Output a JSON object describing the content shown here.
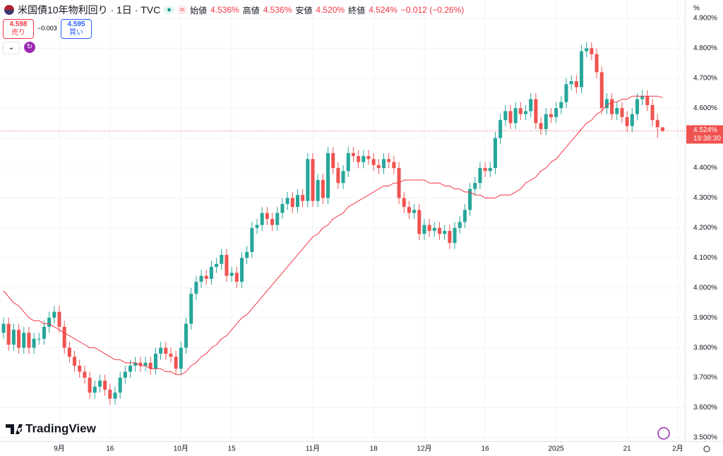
{
  "header": {
    "symbol": "米国債10年物利回り · 1日 · TVC",
    "open_label": "始値",
    "open": "4.536%",
    "high_label": "高値",
    "high": "4.536%",
    "low_label": "安値",
    "low": "4.520%",
    "close_label": "終値",
    "close": "4.524%",
    "change": "−0.012 (−0.26%)",
    "sell_price": "4.598",
    "sell_label": "売り",
    "spread": "−0.003",
    "buy_price": "4.595",
    "buy_label": "買い",
    "logo": "TradingView",
    "axis_unit": "%"
  },
  "chart_data": {
    "type": "candlestick",
    "up_color": "#26a69a",
    "down_color": "#ef5350",
    "grid": true,
    "open": [
      3.85,
      3.88,
      3.81,
      3.86,
      3.8,
      3.85,
      3.8,
      3.83,
      3.83,
      3.87,
      3.9,
      3.92,
      3.87,
      3.8,
      3.77,
      3.74,
      3.72,
      3.7,
      3.65,
      3.67,
      3.69,
      3.66,
      3.63,
      3.65,
      3.7,
      3.72,
      3.74,
      3.75,
      3.74,
      3.75,
      3.73,
      3.78,
      3.8,
      3.78,
      3.77,
      3.73,
      3.8,
      3.88,
      3.98,
      4.02,
      4.04,
      4.03,
      4.07,
      4.08,
      4.11,
      4.04,
      4.05,
      4.02,
      4.1,
      4.12,
      4.2,
      4.21,
      4.25,
      4.23,
      4.21,
      4.25,
      4.28,
      4.3,
      4.27,
      4.31,
      4.29,
      4.43,
      4.29,
      4.36,
      4.3,
      4.45,
      4.4,
      4.35,
      4.39,
      4.45,
      4.44,
      4.42,
      4.44,
      4.43,
      4.41,
      4.4,
      4.43,
      4.42,
      4.4,
      4.3,
      4.27,
      4.25,
      4.26,
      4.18,
      4.21,
      4.19,
      4.2,
      4.18,
      4.19,
      4.15,
      4.2,
      4.22,
      4.26,
      4.33,
      4.35,
      4.4,
      4.39,
      4.4,
      4.5,
      4.56,
      4.59,
      4.55,
      4.6,
      4.58,
      4.59,
      4.63,
      4.55,
      4.53,
      4.58,
      4.57,
      4.6,
      4.62,
      4.68,
      4.69,
      4.67,
      4.79,
      4.8,
      4.78,
      4.72,
      4.6,
      4.63,
      4.58,
      4.6,
      4.57,
      4.54,
      4.58,
      4.63,
      4.64,
      4.61,
      4.56,
      4.536
    ],
    "high": [
      3.9,
      3.9,
      3.88,
      3.88,
      3.87,
      3.87,
      3.85,
      3.85,
      3.89,
      3.92,
      3.94,
      3.94,
      3.89,
      3.82,
      3.79,
      3.76,
      3.74,
      3.72,
      3.69,
      3.71,
      3.71,
      3.68,
      3.67,
      3.72,
      3.74,
      3.76,
      3.77,
      3.77,
      3.77,
      3.77,
      3.8,
      3.82,
      3.82,
      3.8,
      3.79,
      3.82,
      3.9,
      4.0,
      4.04,
      4.06,
      4.06,
      4.09,
      4.1,
      4.13,
      4.13,
      4.07,
      4.07,
      4.12,
      4.14,
      4.22,
      4.23,
      4.27,
      4.27,
      4.25,
      4.27,
      4.3,
      4.32,
      4.32,
      4.33,
      4.33,
      4.45,
      4.45,
      4.38,
      4.38,
      4.47,
      4.47,
      4.42,
      4.41,
      4.47,
      4.47,
      4.46,
      4.46,
      4.46,
      4.45,
      4.43,
      4.45,
      4.45,
      4.44,
      4.42,
      4.32,
      4.29,
      4.28,
      4.28,
      4.23,
      4.23,
      4.22,
      4.22,
      4.21,
      4.21,
      4.22,
      4.24,
      4.28,
      4.35,
      4.37,
      4.42,
      4.42,
      4.42,
      4.52,
      4.58,
      4.61,
      4.61,
      4.62,
      4.62,
      4.61,
      4.65,
      4.65,
      4.57,
      4.6,
      4.6,
      4.62,
      4.64,
      4.7,
      4.71,
      4.71,
      4.81,
      4.82,
      4.82,
      4.8,
      4.74,
      4.65,
      4.65,
      4.62,
      4.62,
      4.59,
      4.6,
      4.65,
      4.66,
      4.66,
      4.63,
      4.58,
      4.536
    ],
    "low": [
      3.83,
      3.79,
      3.79,
      3.78,
      3.78,
      3.78,
      3.78,
      3.81,
      3.81,
      3.85,
      3.88,
      3.85,
      3.78,
      3.75,
      3.72,
      3.7,
      3.68,
      3.63,
      3.63,
      3.65,
      3.64,
      3.61,
      3.61,
      3.63,
      3.68,
      3.7,
      3.72,
      3.72,
      3.72,
      3.71,
      3.71,
      3.76,
      3.76,
      3.75,
      3.71,
      3.71,
      3.78,
      3.86,
      3.96,
      4.0,
      4.01,
      4.01,
      4.05,
      4.06,
      4.02,
      4.02,
      4.0,
      4.0,
      4.08,
      4.1,
      4.18,
      4.19,
      4.21,
      4.19,
      4.19,
      4.23,
      4.26,
      4.25,
      4.25,
      4.27,
      4.27,
      4.27,
      4.27,
      4.28,
      4.28,
      4.38,
      4.33,
      4.33,
      4.37,
      4.42,
      4.4,
      4.4,
      4.41,
      4.39,
      4.38,
      4.38,
      4.4,
      4.38,
      4.28,
      4.25,
      4.23,
      4.23,
      4.16,
      4.16,
      4.17,
      4.17,
      4.16,
      4.16,
      4.13,
      4.13,
      4.18,
      4.2,
      4.24,
      4.31,
      4.33,
      4.37,
      4.37,
      4.38,
      4.48,
      4.54,
      4.53,
      4.53,
      4.56,
      4.56,
      4.57,
      4.53,
      4.51,
      4.51,
      4.55,
      4.55,
      4.58,
      4.6,
      4.66,
      4.65,
      4.65,
      4.77,
      4.76,
      4.7,
      4.58,
      4.58,
      4.56,
      4.56,
      4.55,
      4.52,
      4.52,
      4.56,
      4.61,
      4.59,
      4.54,
      4.5,
      4.52
    ],
    "close": [
      3.88,
      3.81,
      3.86,
      3.8,
      3.85,
      3.8,
      3.83,
      3.83,
      3.87,
      3.9,
      3.92,
      3.87,
      3.8,
      3.77,
      3.74,
      3.72,
      3.7,
      3.65,
      3.67,
      3.69,
      3.66,
      3.63,
      3.65,
      3.7,
      3.72,
      3.74,
      3.75,
      3.74,
      3.75,
      3.73,
      3.78,
      3.8,
      3.78,
      3.77,
      3.73,
      3.8,
      3.88,
      3.98,
      4.02,
      4.04,
      4.03,
      4.07,
      4.08,
      4.11,
      4.04,
      4.05,
      4.02,
      4.1,
      4.12,
      4.2,
      4.21,
      4.25,
      4.23,
      4.21,
      4.25,
      4.28,
      4.3,
      4.27,
      4.31,
      4.29,
      4.43,
      4.29,
      4.36,
      4.3,
      4.45,
      4.4,
      4.35,
      4.39,
      4.45,
      4.44,
      4.42,
      4.44,
      4.43,
      4.41,
      4.4,
      4.43,
      4.42,
      4.4,
      4.3,
      4.27,
      4.25,
      4.26,
      4.18,
      4.21,
      4.19,
      4.2,
      4.18,
      4.19,
      4.15,
      4.2,
      4.22,
      4.26,
      4.33,
      4.35,
      4.4,
      4.39,
      4.4,
      4.5,
      4.56,
      4.59,
      4.55,
      4.6,
      4.58,
      4.59,
      4.63,
      4.55,
      4.53,
      4.58,
      4.57,
      4.6,
      4.62,
      4.68,
      4.69,
      4.67,
      4.79,
      4.8,
      4.78,
      4.72,
      4.6,
      4.63,
      4.58,
      4.6,
      4.57,
      4.54,
      4.58,
      4.63,
      4.64,
      4.61,
      4.56,
      4.536,
      4.524
    ],
    "ma": {
      "color": "#f23645",
      "values": [
        3.99,
        3.97,
        3.95,
        3.94,
        3.92,
        3.9,
        3.89,
        3.89,
        3.88,
        3.88,
        3.87,
        3.86,
        3.85,
        3.84,
        3.83,
        3.82,
        3.81,
        3.8,
        3.8,
        3.79,
        3.78,
        3.77,
        3.76,
        3.76,
        3.75,
        3.75,
        3.75,
        3.74,
        3.74,
        3.73,
        3.73,
        3.73,
        3.72,
        3.72,
        3.71,
        3.71,
        3.72,
        3.74,
        3.75,
        3.77,
        3.78,
        3.8,
        3.81,
        3.83,
        3.84,
        3.86,
        3.88,
        3.9,
        3.91,
        3.93,
        3.95,
        3.97,
        3.99,
        4.01,
        4.03,
        4.05,
        4.07,
        4.09,
        4.11,
        4.13,
        4.15,
        4.17,
        4.18,
        4.2,
        4.21,
        4.23,
        4.24,
        4.25,
        4.27,
        4.28,
        4.29,
        4.3,
        4.31,
        4.32,
        4.33,
        4.34,
        4.34,
        4.35,
        4.35,
        4.36,
        4.36,
        4.36,
        4.36,
        4.36,
        4.35,
        4.35,
        4.35,
        4.34,
        4.34,
        4.33,
        4.33,
        4.32,
        4.32,
        4.31,
        4.31,
        4.3,
        4.3,
        4.3,
        4.31,
        4.31,
        4.31,
        4.32,
        4.33,
        4.35,
        4.36,
        4.37,
        4.39,
        4.4,
        4.42,
        4.43,
        4.45,
        4.47,
        4.49,
        4.51,
        4.53,
        4.55,
        4.56,
        4.58,
        4.59,
        4.61,
        4.62,
        4.62,
        4.63,
        4.63,
        4.64,
        4.64,
        4.64,
        4.64,
        4.64,
        4.64,
        4.635
      ]
    },
    "last_price": {
      "value": 4.524,
      "label": "4.524%",
      "time": "19:38:30"
    },
    "xlim": [
      -0.7,
      134.4
    ],
    "xticks": [
      {
        "value": 11,
        "label": "9月"
      },
      {
        "value": 21,
        "label": "16"
      },
      {
        "value": 35,
        "label": "10月"
      },
      {
        "value": 45,
        "label": "15"
      },
      {
        "value": 61,
        "label": "11月"
      },
      {
        "value": 73,
        "label": "18"
      },
      {
        "value": 83,
        "label": "12月"
      },
      {
        "value": 95,
        "label": "16"
      },
      {
        "value": 109,
        "label": "2025"
      },
      {
        "value": 123,
        "label": "21"
      },
      {
        "value": 133,
        "label": "2月"
      }
    ],
    "ylim": [
      3.488,
      4.961
    ],
    "yticks": [
      {
        "value": 3.5,
        "label": "3.500%"
      },
      {
        "value": 3.6,
        "label": "3.600%"
      },
      {
        "value": 3.7,
        "label": "3.700%"
      },
      {
        "value": 3.8,
        "label": "3.800%"
      },
      {
        "value": 3.9,
        "label": "3.900%"
      },
      {
        "value": 4.0,
        "label": "4.000%"
      },
      {
        "value": 4.1,
        "label": "4.100%"
      },
      {
        "value": 4.2,
        "label": "4.200%"
      },
      {
        "value": 4.3,
        "label": "4.300%"
      },
      {
        "value": 4.4,
        "label": "4.400%"
      },
      {
        "value": 4.5,
        "label": "4.500%"
      },
      {
        "value": 4.6,
        "label": "4.600%"
      },
      {
        "value": 4.7,
        "label": "4.700%"
      },
      {
        "value": 4.8,
        "label": "4.800%"
      },
      {
        "value": 4.9,
        "label": "4.900%"
      }
    ]
  }
}
